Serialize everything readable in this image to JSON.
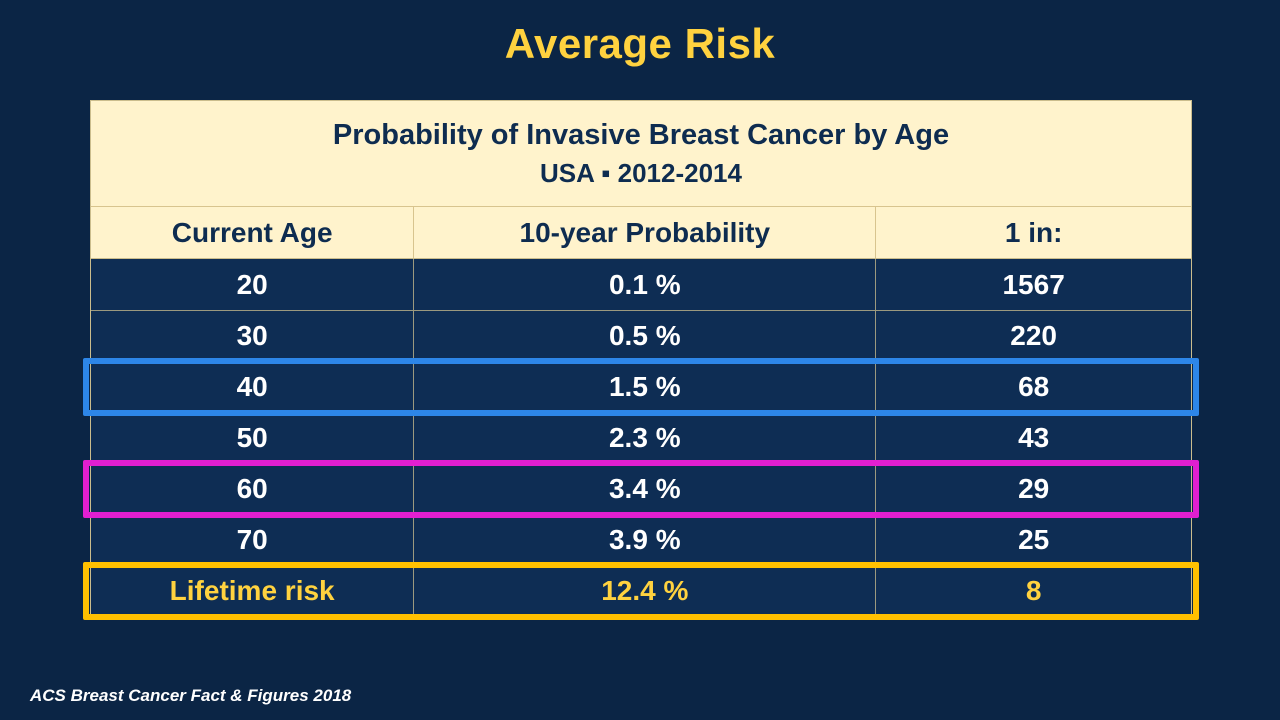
{
  "slide": {
    "title": "Average Risk",
    "footer": "ACS Breast Cancer Fact & Figures 2018"
  },
  "table": {
    "title": "Probability of Invasive Breast Cancer by Age",
    "subtitle": "USA ▪ 2012-2014",
    "columns": [
      "Current Age",
      "10-year Probability",
      "1 in:"
    ],
    "rows": [
      {
        "cells": [
          "20",
          "0.1 %",
          "1567"
        ],
        "highlight": "none"
      },
      {
        "cells": [
          "30",
          "0.5 %",
          "220"
        ],
        "highlight": "none"
      },
      {
        "cells": [
          "40",
          "1.5 %",
          "68"
        ],
        "highlight": "blue"
      },
      {
        "cells": [
          "50",
          "2.3 %",
          "43"
        ],
        "highlight": "none"
      },
      {
        "cells": [
          "60",
          "3.4 %",
          "29"
        ],
        "highlight": "magenta"
      },
      {
        "cells": [
          "70",
          "3.9 %",
          "25"
        ],
        "highlight": "none"
      },
      {
        "cells": [
          "Lifetime risk",
          "12.4 %",
          "8"
        ],
        "highlight": "gold"
      }
    ]
  },
  "colors": {
    "background": "#0b2545",
    "title_text": "#ffd23f",
    "table_header_bg": "#fff3cc",
    "table_header_text": "#0e2c50",
    "body_row_bg": "#0e2d54",
    "body_text": "#ffffff",
    "lifetime_text": "#ffd23f",
    "highlight_blue": "#2d86e8",
    "highlight_magenta": "#e11fd0",
    "highlight_gold": "#ffc000",
    "grid_line": "#cbbd8d"
  }
}
